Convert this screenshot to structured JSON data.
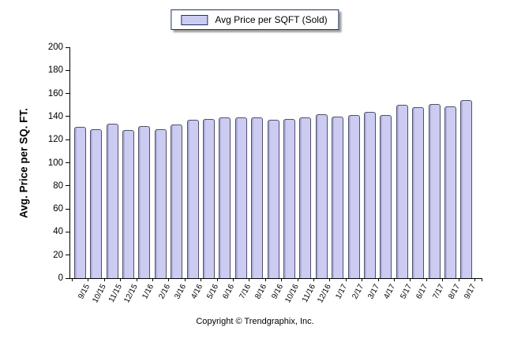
{
  "legend": {
    "label": "Avg Price per SQFT (Sold)",
    "swatch_fill": "#ccccf2",
    "swatch_border": "#1c3461",
    "box_border": "#1c3461"
  },
  "footer": {
    "copyright": "Copyright © Trendgraphix, Inc."
  },
  "colors": {
    "bar_fill": "#ccccf2",
    "bar_border": "#50506a",
    "axis": "#000000"
  },
  "chart_data": {
    "type": "bar",
    "title": "",
    "xlabel": "",
    "ylabel": "Avg. Price per SQ. FT.",
    "ylim": [
      0,
      200
    ],
    "ytick_step": 20,
    "grid": false,
    "legend_position": "top-center",
    "categories": [
      "9/15",
      "10/15",
      "11/15",
      "12/15",
      "1/16",
      "2/16",
      "3/16",
      "4/16",
      "5/16",
      "6/16",
      "7/16",
      "8/16",
      "9/16",
      "10/16",
      "11/16",
      "12/16",
      "1/17",
      "2/17",
      "3/17",
      "4/17",
      "5/17",
      "6/17",
      "7/17",
      "8/17",
      "9/17"
    ],
    "series": [
      {
        "name": "Avg Price per SQFT (Sold)",
        "values": [
          131,
          129,
          134,
          128,
          132,
          129,
          133,
          137,
          138,
          139,
          139,
          139,
          137,
          138,
          139,
          142,
          140,
          141,
          144,
          141,
          150,
          148,
          151,
          149,
          154
        ]
      }
    ]
  }
}
